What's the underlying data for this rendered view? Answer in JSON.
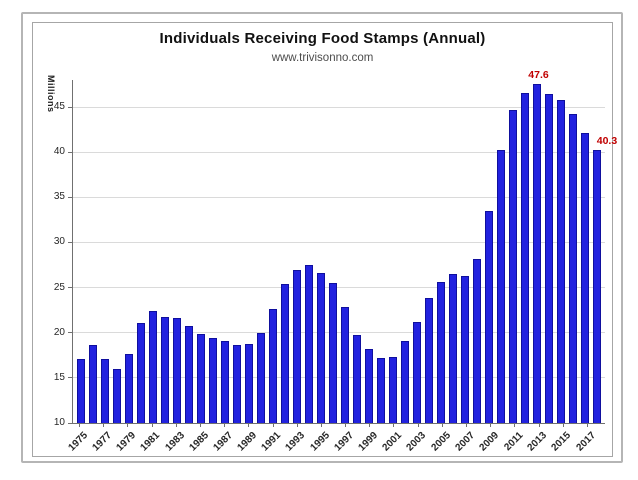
{
  "chart_data": {
    "type": "bar",
    "title": "Individuals Receiving Food Stamps (Annual)",
    "subtitle": "www.trivisonno.com",
    "ylabel": "Millions",
    "xlabel": "",
    "categories": [
      1975,
      1976,
      1977,
      1978,
      1979,
      1980,
      1981,
      1982,
      1983,
      1984,
      1985,
      1986,
      1987,
      1988,
      1989,
      1990,
      1991,
      1992,
      1993,
      1994,
      1995,
      1996,
      1997,
      1998,
      1999,
      2000,
      2001,
      2002,
      2003,
      2004,
      2005,
      2006,
      2007,
      2008,
      2009,
      2010,
      2011,
      2012,
      2013,
      2014,
      2015,
      2016,
      2017,
      2018
    ],
    "values": [
      17.1,
      18.6,
      17.1,
      16.0,
      17.7,
      21.1,
      22.4,
      21.7,
      21.6,
      20.8,
      19.9,
      19.4,
      19.1,
      18.6,
      18.8,
      20.0,
      22.6,
      25.4,
      27.0,
      27.5,
      26.6,
      25.5,
      22.9,
      19.8,
      18.2,
      17.2,
      17.3,
      19.1,
      21.2,
      23.9,
      25.6,
      26.5,
      26.3,
      28.2,
      33.5,
      40.3,
      44.7,
      46.6,
      47.6,
      46.5,
      45.8,
      44.2,
      42.1,
      40.3
    ],
    "x_tick_labels": [
      "1975",
      "1977",
      "1979",
      "1981",
      "1983",
      "1985",
      "1987",
      "1989",
      "1991",
      "1993",
      "1995",
      "1997",
      "1999",
      "2001",
      "2003",
      "2005",
      "2007",
      "2009",
      "2011",
      "2013",
      "2015",
      "2017"
    ],
    "y_ticks": [
      10,
      15,
      20,
      25,
      30,
      35,
      40,
      45
    ],
    "ylim": [
      10,
      48
    ],
    "grid": "horizontal",
    "legend": "none",
    "annotations": [
      {
        "year": 2013,
        "label": "47.6",
        "dx": 0
      },
      {
        "year": 2018,
        "label": "40.3",
        "dx": 8
      }
    ],
    "colors": {
      "bar_fill": "#2121df",
      "bar_border": "#0f0f9e",
      "annotation": "#c00000",
      "gridline": "#dadada",
      "axis": "#707070",
      "frame_border": "#b5b5b5",
      "chart_border": "#a6a6a6"
    }
  }
}
